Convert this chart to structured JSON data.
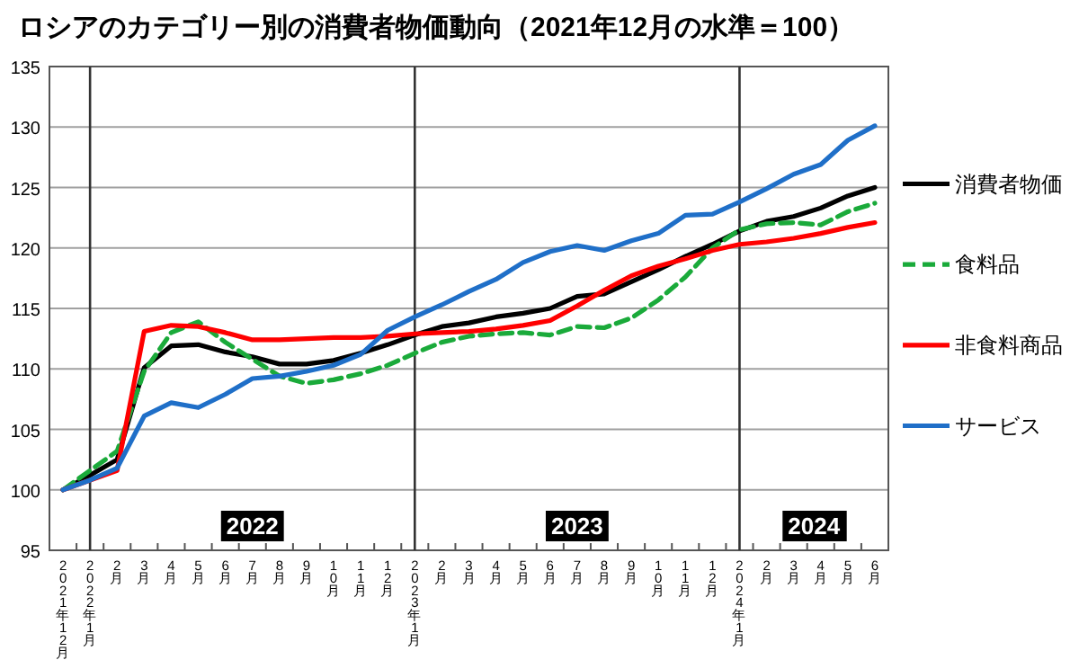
{
  "chart_data": {
    "type": "line",
    "title": "ロシアのカテゴリー別の消費者物価動向（2021年12月の水準＝100）",
    "categories": [
      "2021年12月",
      "2022年1月",
      "2月",
      "3月",
      "4月",
      "5月",
      "6月",
      "7月",
      "8月",
      "9月",
      "10月",
      "11月",
      "12月",
      "2023年1月",
      "2月",
      "3月",
      "4月",
      "5月",
      "6月",
      "7月",
      "8月",
      "9月",
      "10月",
      "11月",
      "12月",
      "2024年1月",
      "2月",
      "3月",
      "4月",
      "5月",
      "6月"
    ],
    "series": [
      {
        "name": "消費者物価",
        "color": "#000000",
        "line_style": "solid",
        "values": [
          100,
          101.2,
          102.5,
          110.1,
          111.9,
          112.0,
          111.4,
          111.0,
          110.4,
          110.4,
          110.7,
          111.3,
          112.0,
          112.8,
          113.5,
          113.8,
          114.3,
          114.6,
          115.0,
          116.0,
          116.2,
          117.2,
          118.2,
          119.3,
          120.3,
          121.4,
          122.2,
          122.6,
          123.3,
          124.3,
          125.0
        ]
      },
      {
        "name": "食料品",
        "color": "#1aaa3a",
        "line_style": "dashed",
        "values": [
          100,
          101.6,
          103.2,
          109.8,
          113.0,
          113.9,
          112.2,
          110.8,
          109.4,
          108.8,
          109.1,
          109.6,
          110.3,
          111.3,
          112.2,
          112.7,
          112.9,
          113.0,
          112.8,
          113.5,
          113.4,
          114.2,
          115.7,
          117.6,
          120.0,
          121.5,
          122.0,
          122.1,
          121.9,
          123.0,
          123.7
        ]
      },
      {
        "name": "非食料商品",
        "color": "#ff0000",
        "line_style": "solid",
        "values": [
          100,
          100.8,
          101.6,
          113.1,
          113.6,
          113.5,
          113.0,
          112.4,
          112.4,
          112.5,
          112.6,
          112.6,
          112.7,
          112.9,
          113.0,
          113.1,
          113.3,
          113.6,
          114.0,
          115.2,
          116.5,
          117.7,
          118.5,
          119.1,
          119.8,
          120.3,
          120.5,
          120.8,
          121.2,
          121.7,
          122.1
        ]
      },
      {
        "name": "サービス",
        "color": "#1f6fc8",
        "line_style": "solid",
        "values": [
          100,
          100.8,
          101.8,
          106.1,
          107.2,
          106.8,
          107.9,
          109.2,
          109.4,
          109.8,
          110.3,
          111.2,
          113.2,
          114.3,
          115.3,
          116.4,
          117.4,
          118.8,
          119.7,
          120.2,
          119.8,
          120.6,
          121.2,
          122.7,
          122.8,
          123.8,
          124.9,
          126.1,
          126.9,
          128.9,
          130.1
        ]
      }
    ],
    "ylim": [
      95,
      135
    ],
    "yticks": [
      95,
      100,
      105,
      110,
      115,
      120,
      125,
      130,
      135
    ],
    "grid": "y",
    "legend": "right",
    "marker": "none",
    "ref_lines": [
      {
        "axis": "x",
        "value": "2022年1月",
        "color": "#333333"
      },
      {
        "axis": "x",
        "value": "2023年1月",
        "color": "#333333"
      },
      {
        "axis": "x",
        "value": "2024年1月",
        "color": "#333333"
      }
    ],
    "annotations": [
      "2022",
      "2023",
      "2024"
    ]
  }
}
